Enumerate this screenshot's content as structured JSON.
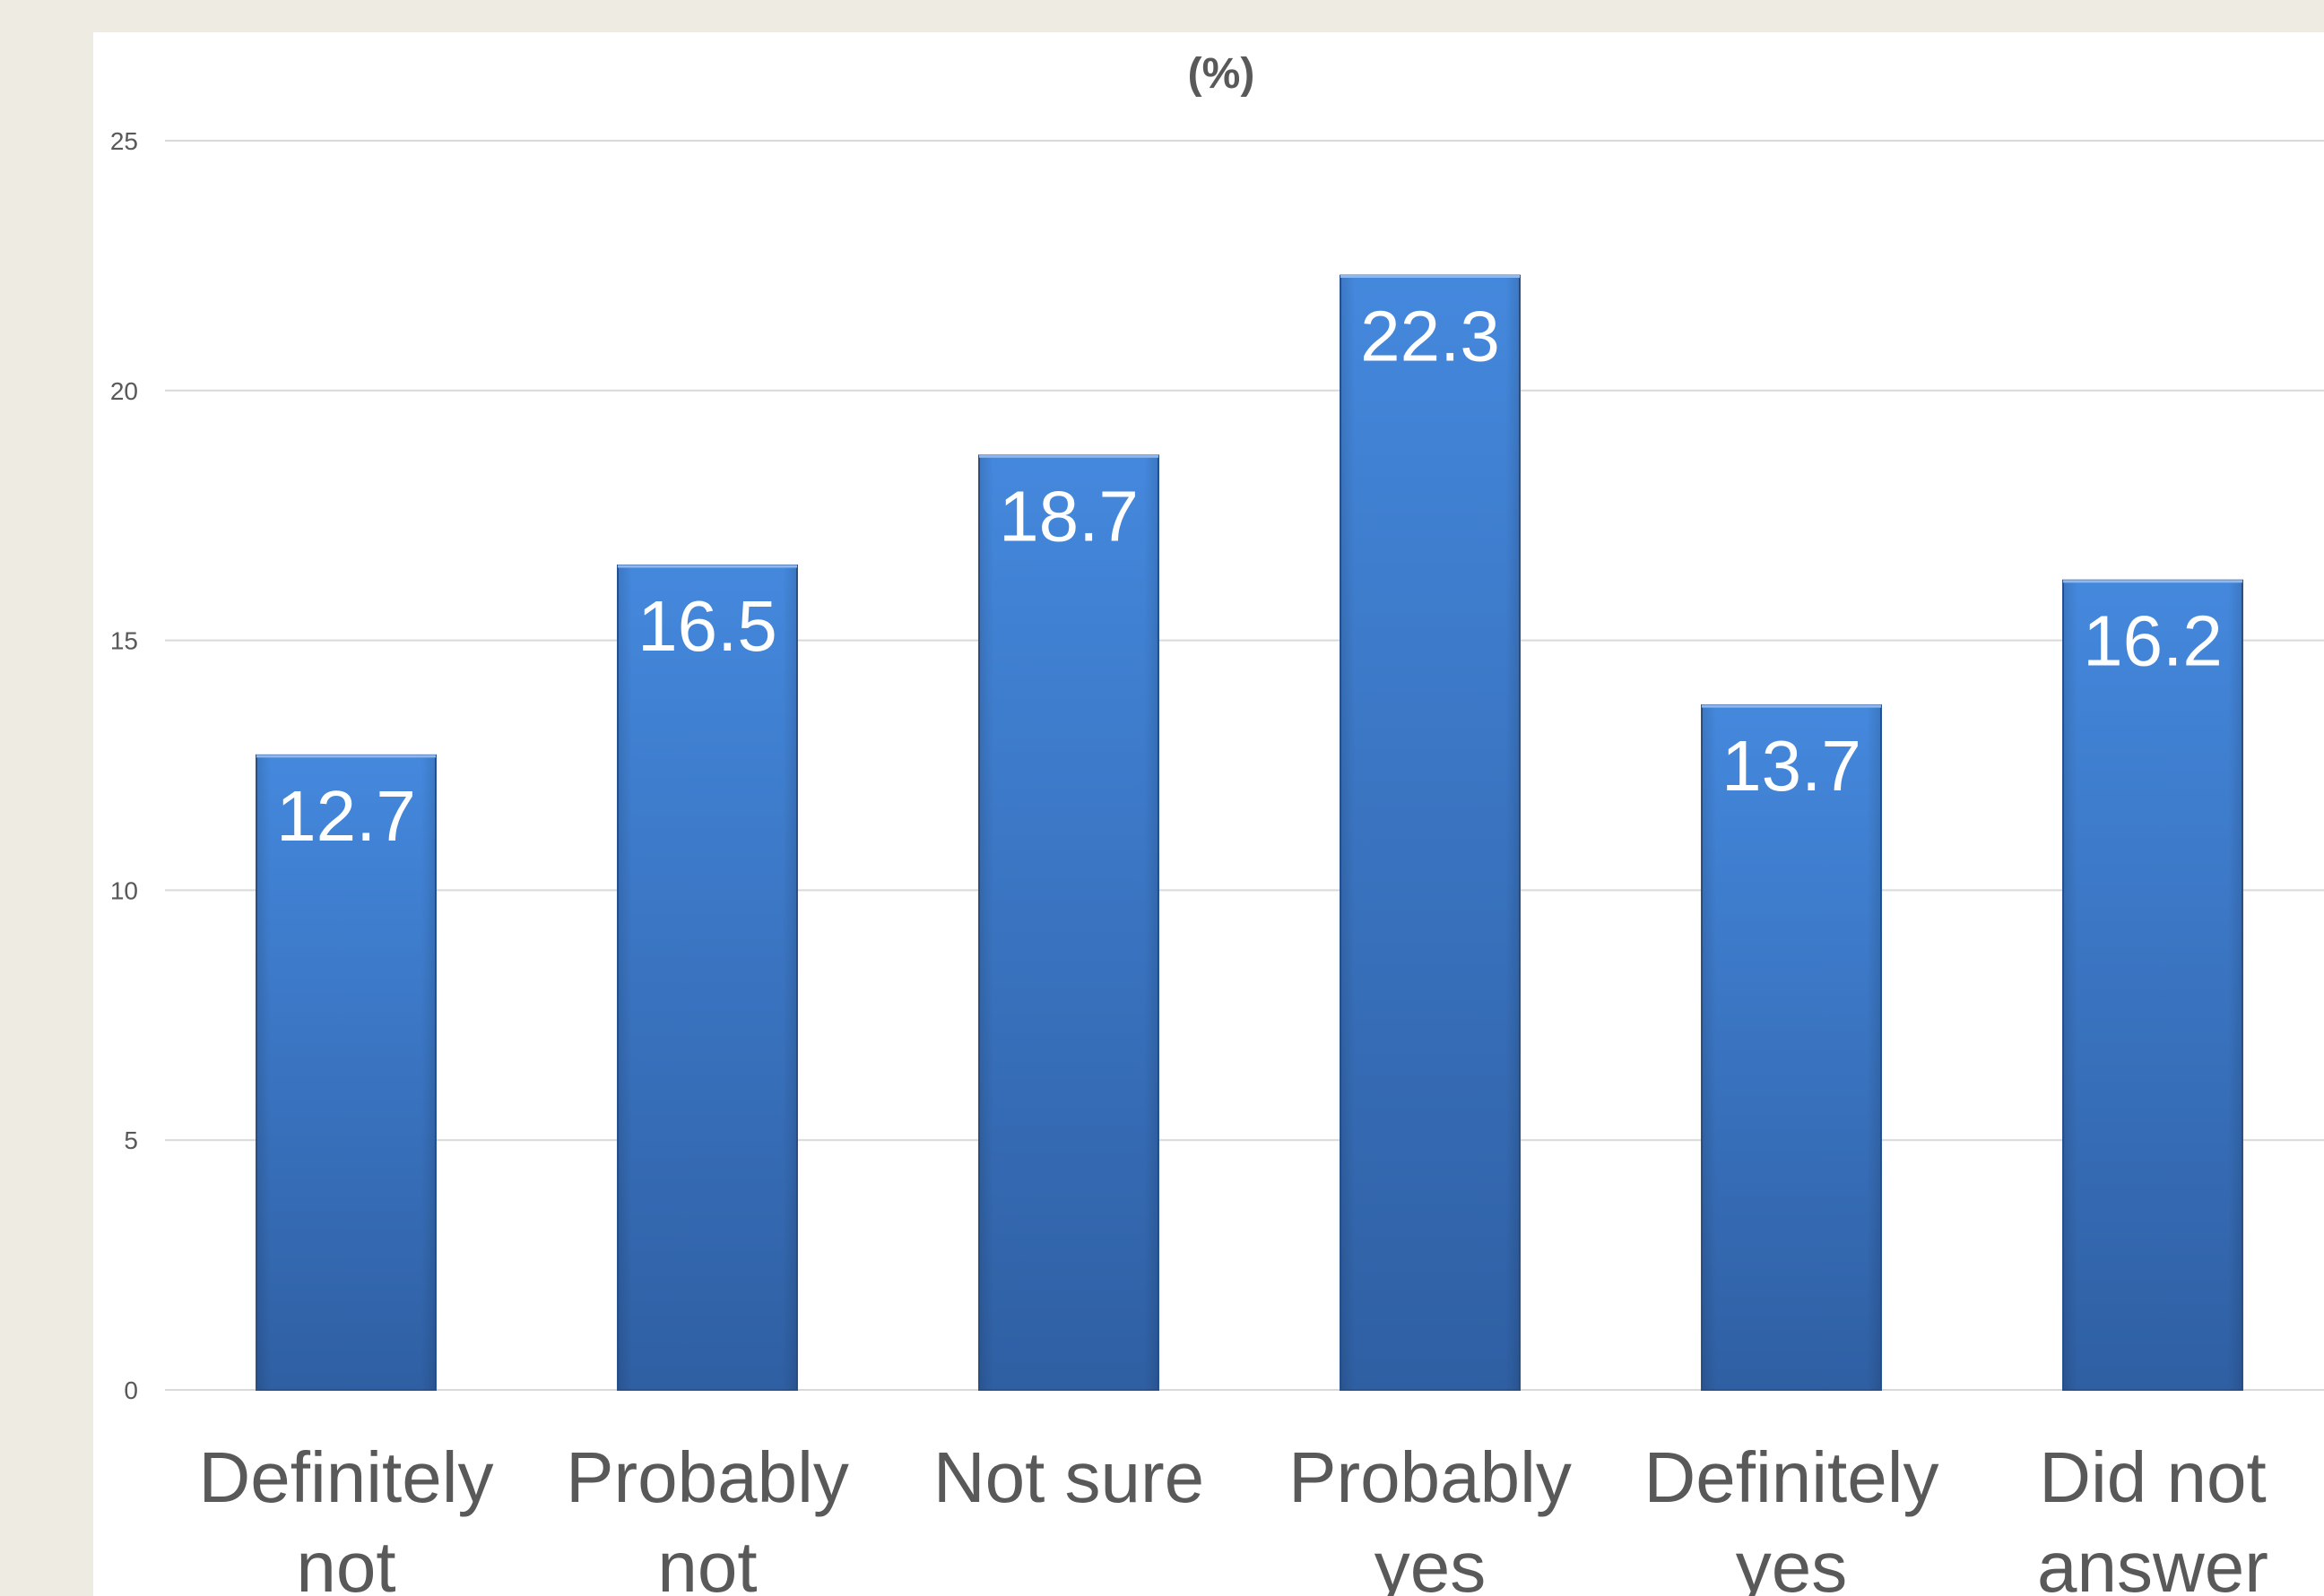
{
  "chart_data": {
    "type": "bar",
    "title": "(%)",
    "categories": [
      [
        "Definitely",
        "not"
      ],
      [
        "Probably",
        "not"
      ],
      [
        "Not sure"
      ],
      [
        "Probably",
        "yes"
      ],
      [
        "Definitely",
        "yes"
      ],
      [
        "Did not",
        "answer"
      ]
    ],
    "values": [
      12.7,
      16.5,
      18.7,
      22.3,
      13.7,
      16.2
    ],
    "data_labels": [
      "12.7",
      "16.5",
      "18.7",
      "22.3",
      "13.7",
      "16.2"
    ],
    "ylim": [
      0,
      25
    ],
    "yticks": [
      "0",
      "5",
      "10",
      "15",
      "20",
      "25"
    ],
    "xlabel": "",
    "ylabel": "",
    "grid": true,
    "legend": "none",
    "bar_color_top": "#4488dd",
    "bar_color_bottom": "#2f5fa3"
  }
}
